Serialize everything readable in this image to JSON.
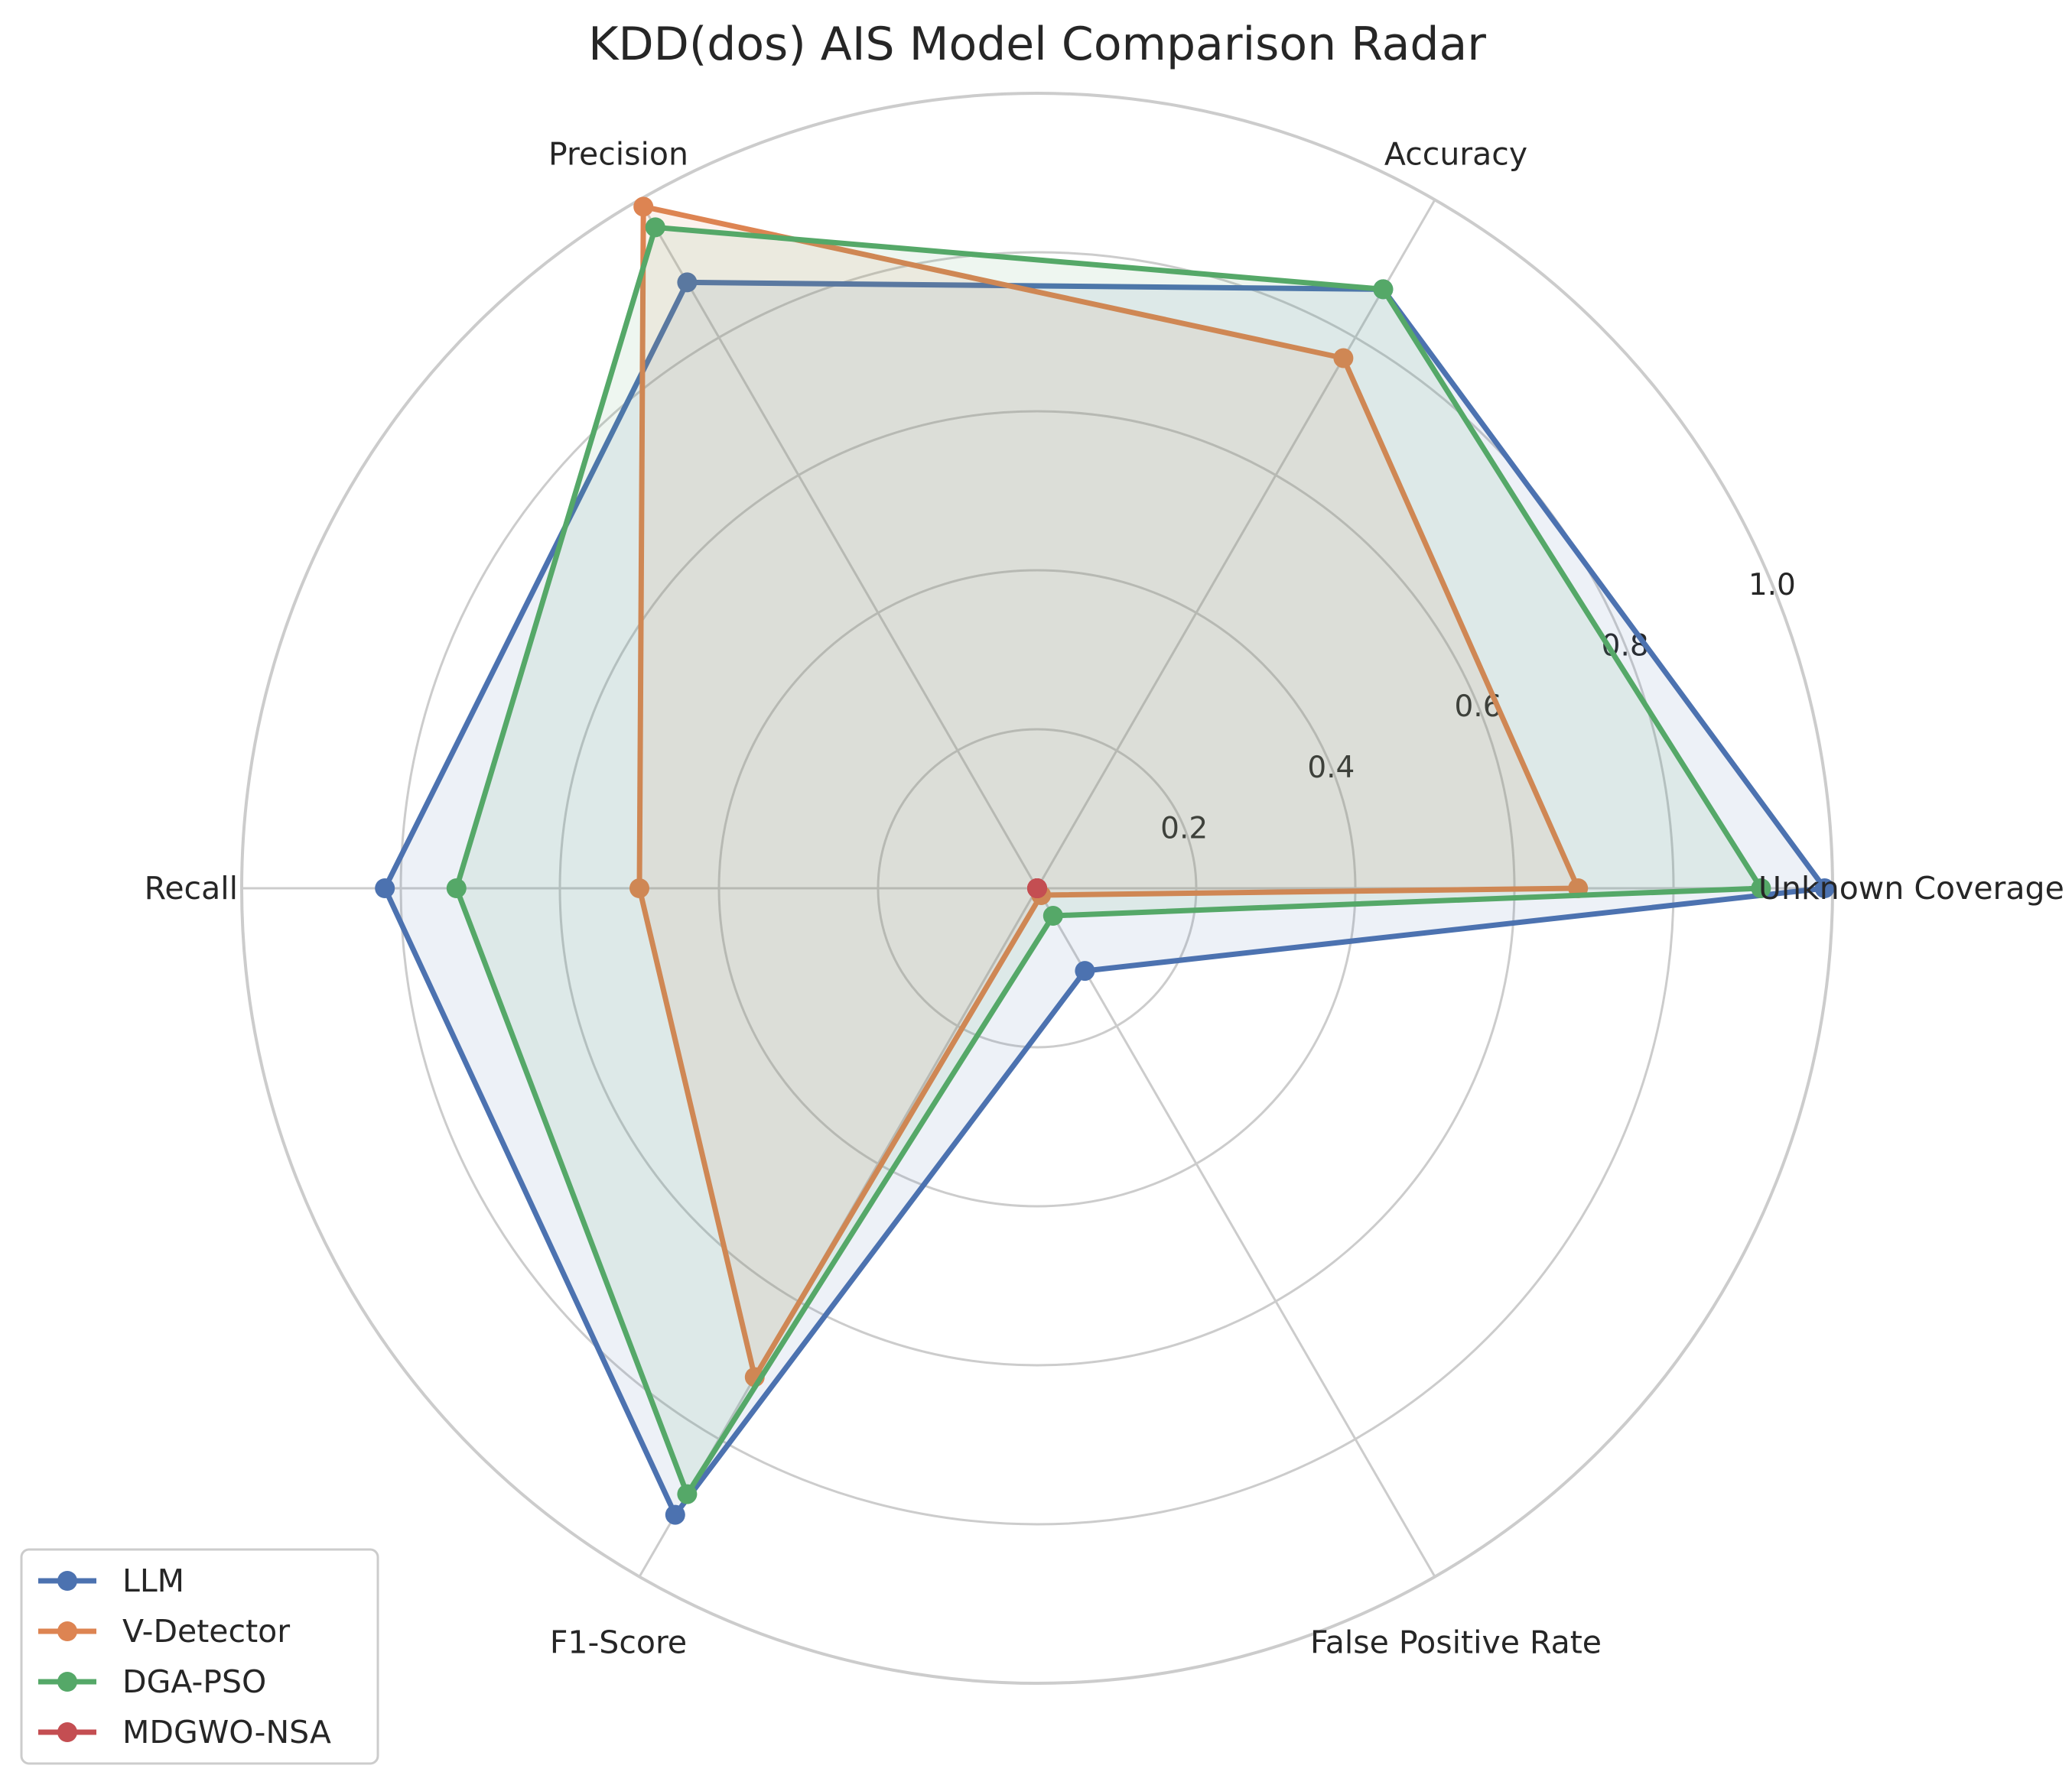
{
  "chart_data": {
    "type": "radar",
    "title": "KDD(dos) AIS Model Comparison Radar",
    "axes": [
      "Unknown Coverage",
      "Accuracy",
      "Precision",
      "Recall",
      "F1-Score",
      "False Positive Rate"
    ],
    "rlim": [
      0,
      1.0
    ],
    "rticks": [
      0.2,
      0.4,
      0.6,
      0.8,
      1.0
    ],
    "rtick_labels": [
      "0.2",
      "0.4",
      "0.6",
      "0.8",
      "1.0"
    ],
    "grid": true,
    "legend_position": "lower-left",
    "series": [
      {
        "name": "LLM",
        "color": "#4c72b0",
        "values": [
          0.99,
          0.87,
          0.88,
          0.82,
          0.91,
          0.12
        ]
      },
      {
        "name": "V-Detector",
        "color": "#dd8452",
        "values": [
          0.68,
          0.77,
          0.99,
          0.5,
          0.71,
          0.01
        ]
      },
      {
        "name": "DGA-PSO",
        "color": "#55a868",
        "values": [
          0.91,
          0.87,
          0.96,
          0.73,
          0.88,
          0.04
        ]
      },
      {
        "name": "MDGWO-NSA",
        "color": "#c44e52",
        "values": [
          0.0,
          0.0,
          0.0,
          0.0,
          0.0,
          0.0
        ]
      }
    ]
  }
}
